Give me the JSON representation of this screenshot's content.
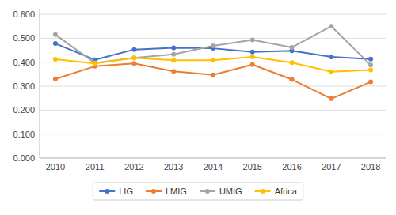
{
  "chart_data": {
    "type": "line",
    "x": [
      2010,
      2011,
      2012,
      2013,
      2014,
      2015,
      2016,
      2017,
      2018
    ],
    "series": [
      {
        "name": "LIG",
        "color": "#4472C4",
        "marker": "o",
        "values": [
          0.478,
          0.41,
          0.453,
          0.46,
          0.458,
          0.443,
          0.448,
          0.422,
          0.413
        ]
      },
      {
        "name": "LMIG",
        "color": "#ED7D31",
        "marker": "o",
        "values": [
          0.33,
          0.383,
          0.395,
          0.362,
          0.347,
          0.39,
          0.328,
          0.248,
          0.318
        ]
      },
      {
        "name": "UMIG",
        "color": "#A5A5A5",
        "marker": "o",
        "values": [
          0.515,
          0.397,
          0.418,
          0.433,
          0.468,
          0.493,
          0.462,
          0.55,
          0.388
        ]
      },
      {
        "name": "Africa",
        "color": "#FFC000",
        "marker": "o",
        "values": [
          0.412,
          0.395,
          0.418,
          0.408,
          0.408,
          0.422,
          0.398,
          0.36,
          0.368
        ]
      }
    ],
    "xlim": [
      2009.6,
      2018.4
    ],
    "xticks": [
      2010,
      2011,
      2012,
      2013,
      2014,
      2015,
      2016,
      2017,
      2018
    ],
    "ylim": [
      0.0,
      0.62
    ],
    "yticks": [
      {
        "value": 0.0,
        "label": "0.000"
      },
      {
        "value": 0.1,
        "label": "0.100"
      },
      {
        "value": 0.2,
        "label": "0.200"
      },
      {
        "value": 0.3,
        "label": "0.300"
      },
      {
        "value": 0.4,
        "label": "0.400"
      },
      {
        "value": 0.5,
        "label": "0.500"
      },
      {
        "value": 0.6,
        "label": "0.600"
      }
    ],
    "grid": true,
    "legend": "bottom"
  }
}
